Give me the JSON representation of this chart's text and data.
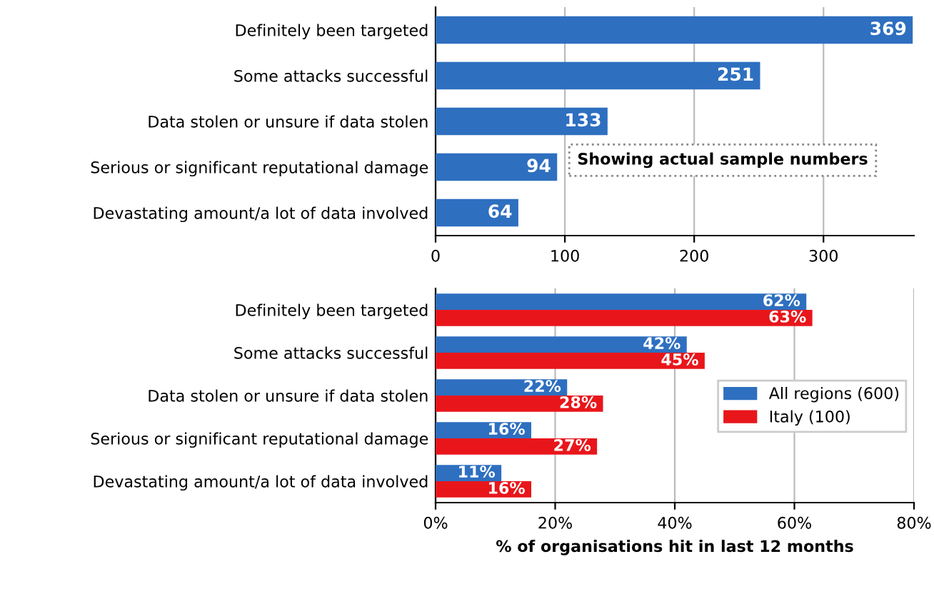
{
  "chart_data": [
    {
      "type": "bar",
      "orientation": "horizontal",
      "categories": [
        "Definitely been targeted",
        "Some attacks successful",
        "Data stolen or unsure if data stolen",
        "Serious or significant reputational damage",
        "Devastating amount/a lot of data involved"
      ],
      "series": [
        {
          "color": "#2e6fc0",
          "values": [
            369,
            251,
            133,
            94,
            64
          ]
        }
      ],
      "data_labels": true,
      "xlim": [
        0,
        370
      ],
      "xticks": [
        0,
        100,
        200,
        300
      ],
      "grid": "x",
      "legend": false,
      "annotations": [
        "Showing actual sample numbers"
      ]
    },
    {
      "type": "bar",
      "orientation": "horizontal",
      "categories": [
        "Definitely been targeted",
        "Some attacks successful",
        "Data stolen or unsure if data stolen",
        "Serious or significant reputational damage",
        "Devastating amount/a lot of data involved"
      ],
      "series": [
        {
          "name": "All regions (600)",
          "color": "#2e6fc0",
          "values": [
            62,
            42,
            22,
            16,
            11
          ],
          "value_labels": [
            "62%",
            "42%",
            "22%",
            "16%",
            "11%"
          ]
        },
        {
          "name": "Italy (100)",
          "color": "#e8161b",
          "values": [
            63,
            45,
            28,
            27,
            16
          ],
          "value_labels": [
            "63%",
            "45%",
            "28%",
            "27%",
            "16%"
          ]
        }
      ],
      "xlim": [
        0,
        80
      ],
      "xticks": [
        {
          "value": 0,
          "label": "0%"
        },
        {
          "value": 20,
          "label": "20%"
        },
        {
          "value": 40,
          "label": "40%"
        },
        {
          "value": 60,
          "label": "60%"
        },
        {
          "value": 80,
          "label": "80%"
        }
      ],
      "xlabel": "% of organisations hit in last 12 months",
      "grid": "x",
      "legend": "right"
    }
  ]
}
